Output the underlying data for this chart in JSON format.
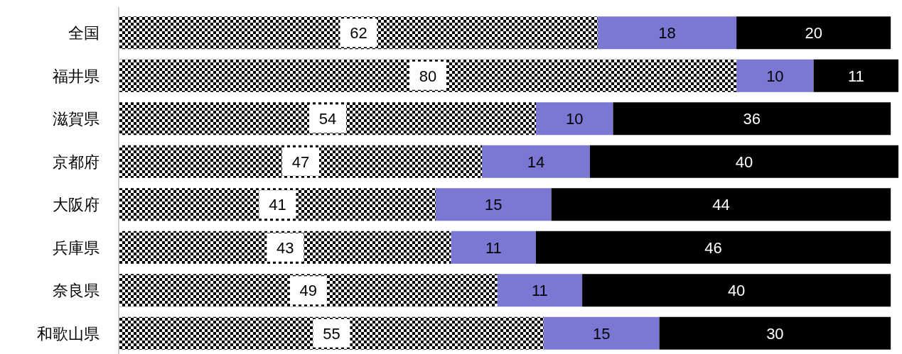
{
  "chart_data": {
    "type": "bar",
    "orientation": "horizontal",
    "stacked": true,
    "data_labels": true,
    "xlim": [
      0,
      101
    ],
    "categories": [
      "全国",
      "福井県",
      "滋賀県",
      "京都府",
      "大阪府",
      "兵庫県",
      "奈良県",
      "和歌山県"
    ],
    "series": [
      {
        "color": "#000000",
        "values": [
          62,
          80,
          54,
          47,
          41,
          43,
          49,
          55
        ]
      },
      {
        "color": "#7b78d4",
        "values": [
          18,
          10,
          10,
          14,
          15,
          11,
          11,
          15
        ]
      },
      {
        "color": "#000000",
        "values": [
          20,
          11,
          36,
          40,
          44,
          46,
          40,
          30
        ]
      }
    ]
  }
}
